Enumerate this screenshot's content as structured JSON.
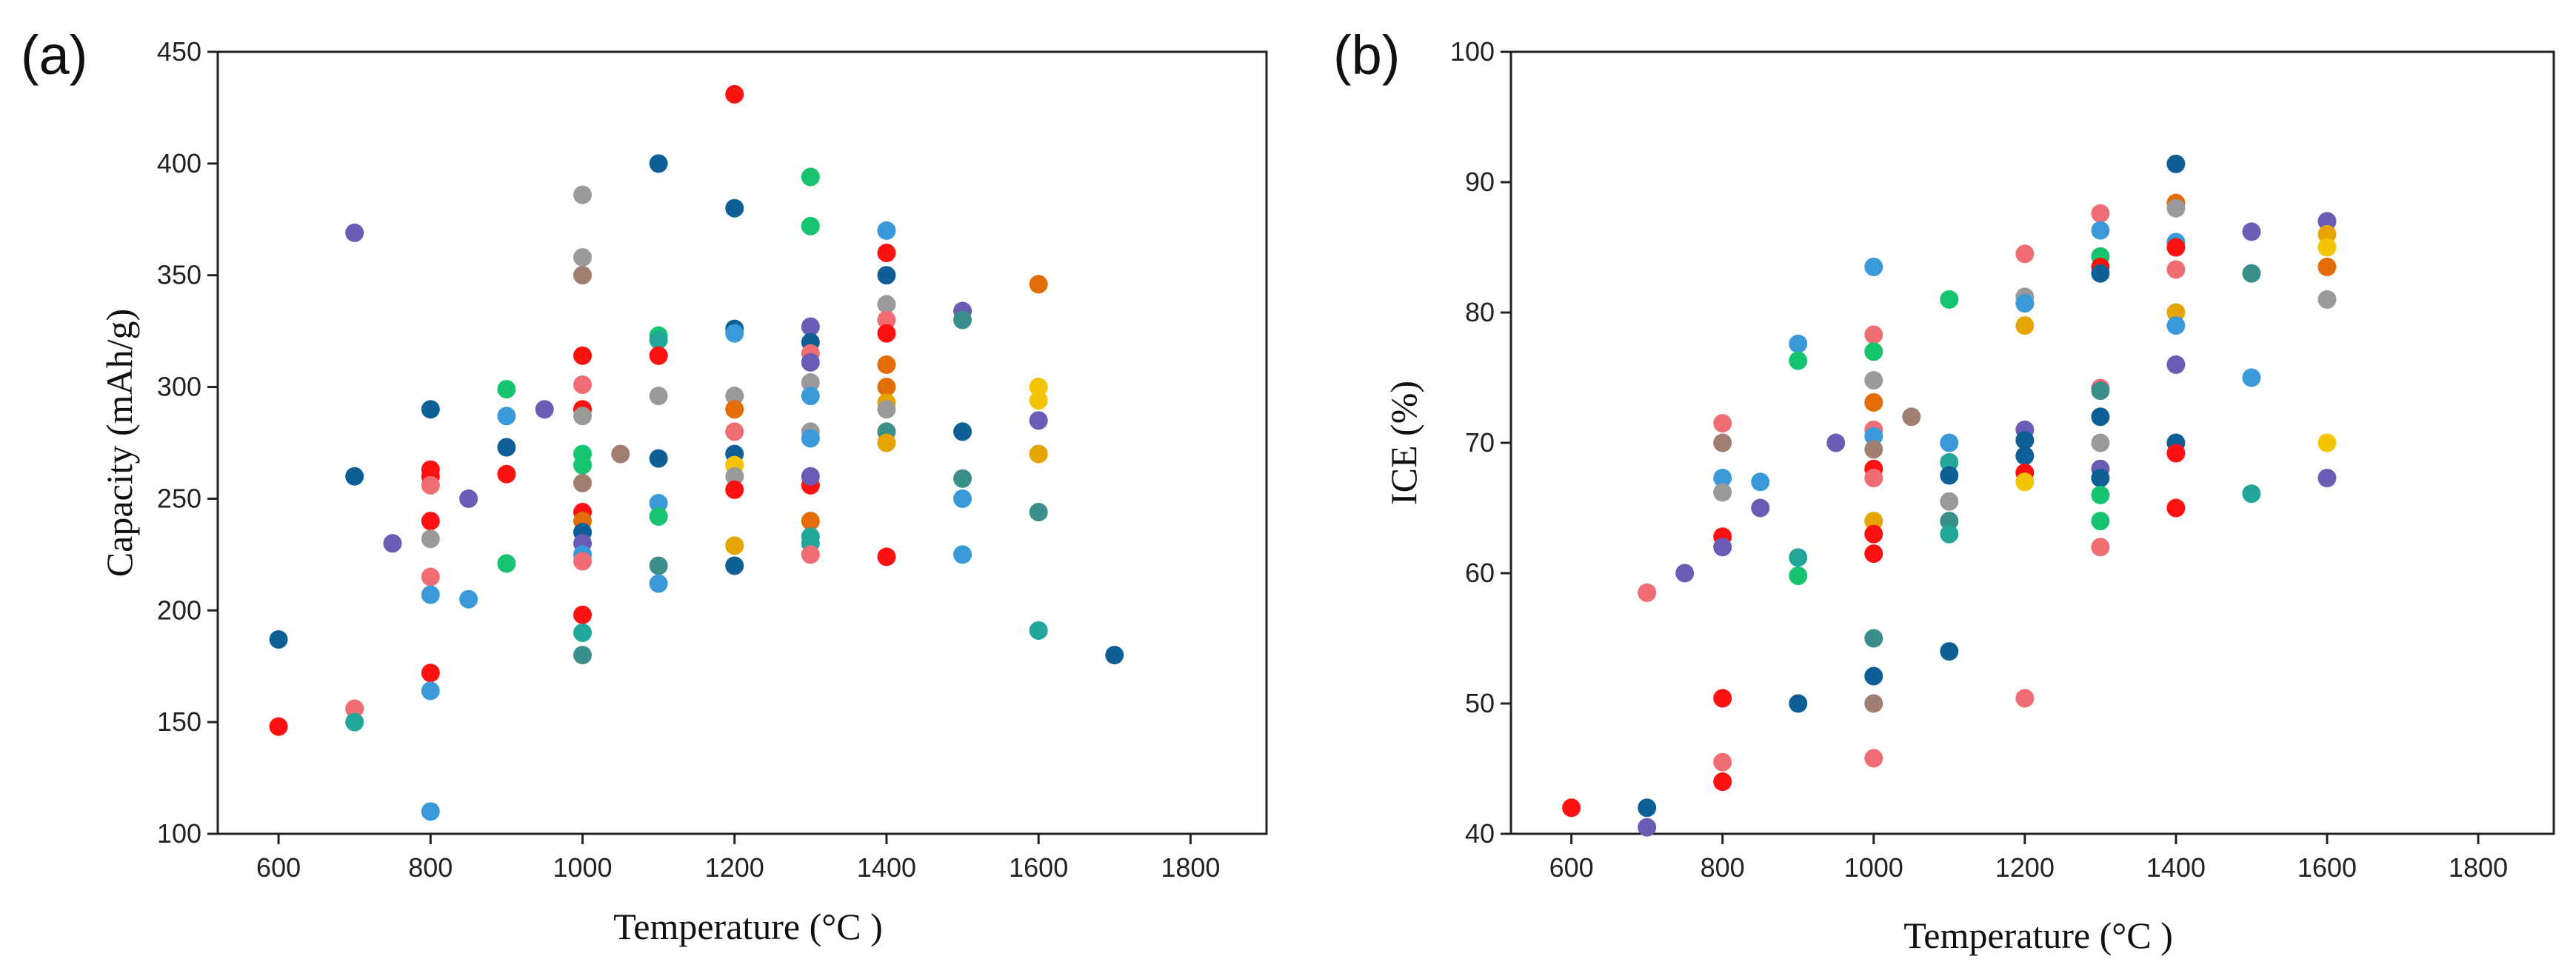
{
  "chart_data": [
    {
      "type": "scatter",
      "panel_label": "(a)",
      "title": "",
      "xlabel": "Temperature (°C )",
      "ylabel": "Capacity (mAh/g)",
      "xlim": [
        520,
        1900
      ],
      "ylim": [
        100,
        450
      ],
      "xticks": [
        600,
        800,
        1000,
        1200,
        1400,
        1600,
        1800
      ],
      "yticks": [
        100,
        150,
        200,
        250,
        300,
        350,
        400,
        450
      ],
      "grid": false,
      "legend": "none",
      "points": [
        [
          600,
          187,
          "#0e5f96"
        ],
        [
          600,
          148,
          "#ff1111"
        ],
        [
          700,
          369,
          "#6b5bb5"
        ],
        [
          700,
          260,
          "#0e5f96"
        ],
        [
          700,
          156,
          "#f06e73"
        ],
        [
          700,
          150,
          "#23a69a"
        ],
        [
          750,
          230,
          "#6b5bb5"
        ],
        [
          800,
          290,
          "#0e5f96"
        ],
        [
          800,
          263,
          "#ff1111"
        ],
        [
          800,
          260,
          "#ff1111"
        ],
        [
          800,
          256,
          "#f06e73"
        ],
        [
          800,
          240,
          "#ff1111"
        ],
        [
          800,
          232,
          "#9a9a9a"
        ],
        [
          800,
          215,
          "#f06e73"
        ],
        [
          800,
          207,
          "#3a9ad9"
        ],
        [
          800,
          172,
          "#ff1111"
        ],
        [
          800,
          164,
          "#3a9ad9"
        ],
        [
          800,
          110,
          "#3a9ad9"
        ],
        [
          850,
          250,
          "#6b5bb5"
        ],
        [
          850,
          205,
          "#3a9ad9"
        ],
        [
          900,
          299,
          "#16c36e"
        ],
        [
          900,
          287,
          "#3a9ad9"
        ],
        [
          900,
          273,
          "#0e5f96"
        ],
        [
          900,
          261,
          "#ff1111"
        ],
        [
          900,
          221,
          "#16c36e"
        ],
        [
          950,
          290,
          "#6b5bb5"
        ],
        [
          1000,
          386,
          "#9a9a9a"
        ],
        [
          1000,
          358,
          "#9a9a9a"
        ],
        [
          1000,
          350,
          "#a07f72"
        ],
        [
          1000,
          314,
          "#ff1111"
        ],
        [
          1000,
          301,
          "#f06e73"
        ],
        [
          1000,
          290,
          "#ff1111"
        ],
        [
          1000,
          287,
          "#9a9a9a"
        ],
        [
          1000,
          270,
          "#16c36e"
        ],
        [
          1000,
          265,
          "#16c36e"
        ],
        [
          1000,
          257,
          "#a07f72"
        ],
        [
          1000,
          244,
          "#ff1111"
        ],
        [
          1000,
          240,
          "#e26d07"
        ],
        [
          1000,
          235,
          "#0e5f96"
        ],
        [
          1000,
          230,
          "#6b5bb5"
        ],
        [
          1000,
          225,
          "#3a9ad9"
        ],
        [
          1000,
          222,
          "#f06e73"
        ],
        [
          1000,
          198,
          "#ff1111"
        ],
        [
          1000,
          190,
          "#23a69a"
        ],
        [
          1000,
          180,
          "#3a8f8a"
        ],
        [
          1050,
          270,
          "#a07f72"
        ],
        [
          1100,
          323,
          "#16c36e"
        ],
        [
          1100,
          321,
          "#23a69a"
        ],
        [
          1100,
          314,
          "#ff1111"
        ],
        [
          1100,
          296,
          "#9a9a9a"
        ],
        [
          1100,
          268,
          "#0e5f96"
        ],
        [
          1100,
          248,
          "#3a9ad9"
        ],
        [
          1100,
          242,
          "#16c36e"
        ],
        [
          1100,
          220,
          "#3a8f8a"
        ],
        [
          1100,
          212,
          "#3a9ad9"
        ],
        [
          1100,
          400,
          "#0e5f96"
        ],
        [
          1200,
          431,
          "#ff1111"
        ],
        [
          1200,
          380,
          "#0e5f96"
        ],
        [
          1200,
          326,
          "#0e5f96"
        ],
        [
          1200,
          324,
          "#3a9ad9"
        ],
        [
          1200,
          296,
          "#9a9a9a"
        ],
        [
          1200,
          290,
          "#e26d07"
        ],
        [
          1200,
          280,
          "#f06e73"
        ],
        [
          1200,
          270,
          "#0e5f96"
        ],
        [
          1200,
          265,
          "#f5c400"
        ],
        [
          1200,
          260,
          "#9a9a9a"
        ],
        [
          1200,
          254,
          "#ff1111"
        ],
        [
          1200,
          229,
          "#e5a400"
        ],
        [
          1200,
          220,
          "#0e5f96"
        ],
        [
          1300,
          394,
          "#16c36e"
        ],
        [
          1300,
          372,
          "#16c36e"
        ],
        [
          1300,
          327,
          "#6b5bb5"
        ],
        [
          1300,
          320,
          "#0e5f96"
        ],
        [
          1300,
          315,
          "#f06e73"
        ],
        [
          1300,
          311,
          "#6b5bb5"
        ],
        [
          1300,
          302,
          "#9a9a9a"
        ],
        [
          1300,
          296,
          "#3a9ad9"
        ],
        [
          1300,
          280,
          "#9a9a9a"
        ],
        [
          1300,
          277,
          "#3a9ad9"
        ],
        [
          1300,
          256,
          "#ff1111"
        ],
        [
          1300,
          260,
          "#6b5bb5"
        ],
        [
          1300,
          240,
          "#e26d07"
        ],
        [
          1300,
          233,
          "#23a69a"
        ],
        [
          1300,
          230,
          "#23a69a"
        ],
        [
          1300,
          225,
          "#f06e73"
        ],
        [
          1400,
          370,
          "#3a9ad9"
        ],
        [
          1400,
          360,
          "#ff1111"
        ],
        [
          1400,
          350,
          "#0e5f96"
        ],
        [
          1400,
          337,
          "#9a9a9a"
        ],
        [
          1400,
          330,
          "#f06e73"
        ],
        [
          1400,
          324,
          "#ff1111"
        ],
        [
          1400,
          310,
          "#e26d07"
        ],
        [
          1400,
          300,
          "#e26d07"
        ],
        [
          1400,
          293,
          "#e5a400"
        ],
        [
          1400,
          290,
          "#9a9a9a"
        ],
        [
          1400,
          280,
          "#3a8f8a"
        ],
        [
          1400,
          275,
          "#e5a400"
        ],
        [
          1400,
          224,
          "#ff1111"
        ],
        [
          1500,
          334,
          "#6b5bb5"
        ],
        [
          1500,
          330,
          "#3a8f8a"
        ],
        [
          1500,
          280,
          "#0e5f96"
        ],
        [
          1500,
          259,
          "#3a8f8a"
        ],
        [
          1500,
          250,
          "#3a9ad9"
        ],
        [
          1500,
          225,
          "#3a9ad9"
        ],
        [
          1600,
          346,
          "#e26d07"
        ],
        [
          1600,
          300,
          "#f5c400"
        ],
        [
          1600,
          294,
          "#f5c400"
        ],
        [
          1600,
          285,
          "#6b5bb5"
        ],
        [
          1600,
          270,
          "#e5a400"
        ],
        [
          1600,
          244,
          "#3a8f8a"
        ],
        [
          1600,
          191,
          "#23a69a"
        ],
        [
          1700,
          180,
          "#0e5f96"
        ]
      ]
    },
    {
      "type": "scatter",
      "panel_label": "(b)",
      "title": "",
      "xlabel": "Temperature (°C )",
      "ylabel": "ICE (%)",
      "xlim": [
        520,
        1900
      ],
      "ylim": [
        40,
        100
      ],
      "xticks": [
        600,
        800,
        1000,
        1200,
        1400,
        1600,
        1800
      ],
      "yticks": [
        40,
        50,
        60,
        70,
        80,
        90,
        100
      ],
      "grid": false,
      "legend": "none",
      "points": [
        [
          600,
          42,
          "#ff1111"
        ],
        [
          700,
          58.5,
          "#f06e73"
        ],
        [
          700,
          42,
          "#0e5f96"
        ],
        [
          700,
          40.5,
          "#6b5bb5"
        ],
        [
          750,
          60,
          "#6b5bb5"
        ],
        [
          800,
          71.5,
          "#f06e73"
        ],
        [
          800,
          70,
          "#a07f72"
        ],
        [
          800,
          67.3,
          "#3a9ad9"
        ],
        [
          800,
          66.2,
          "#9a9a9a"
        ],
        [
          800,
          62.8,
          "#ff1111"
        ],
        [
          800,
          62,
          "#6b5bb5"
        ],
        [
          800,
          50.4,
          "#ff1111"
        ],
        [
          800,
          45.5,
          "#f06e73"
        ],
        [
          800,
          44,
          "#ff1111"
        ],
        [
          850,
          67,
          "#3a9ad9"
        ],
        [
          850,
          65,
          "#6b5bb5"
        ],
        [
          900,
          77.6,
          "#3a9ad9"
        ],
        [
          900,
          76.3,
          "#16c36e"
        ],
        [
          900,
          61.2,
          "#23a69a"
        ],
        [
          900,
          59.8,
          "#16c36e"
        ],
        [
          900,
          50,
          "#0e5f96"
        ],
        [
          950,
          70,
          "#6b5bb5"
        ],
        [
          1000,
          83.5,
          "#3a9ad9"
        ],
        [
          1000,
          78.3,
          "#f06e73"
        ],
        [
          1000,
          77,
          "#16c36e"
        ],
        [
          1000,
          74.8,
          "#9a9a9a"
        ],
        [
          1000,
          73.1,
          "#e26d07"
        ],
        [
          1000,
          71,
          "#f06e73"
        ],
        [
          1000,
          70.5,
          "#3a9ad9"
        ],
        [
          1000,
          69.5,
          "#a07f72"
        ],
        [
          1000,
          68,
          "#ff1111"
        ],
        [
          1000,
          67.3,
          "#f06e73"
        ],
        [
          1000,
          64,
          "#e5a400"
        ],
        [
          1000,
          63,
          "#ff1111"
        ],
        [
          1000,
          61.5,
          "#ff1111"
        ],
        [
          1000,
          55,
          "#3a8f8a"
        ],
        [
          1000,
          52.1,
          "#0e5f96"
        ],
        [
          1000,
          50,
          "#a07f72"
        ],
        [
          1000,
          45.8,
          "#f06e73"
        ],
        [
          1050,
          72,
          "#a07f72"
        ],
        [
          1100,
          81,
          "#16c36e"
        ],
        [
          1100,
          70,
          "#3a9ad9"
        ],
        [
          1100,
          68.5,
          "#23a69a"
        ],
        [
          1100,
          67.5,
          "#0e5f96"
        ],
        [
          1100,
          65.5,
          "#9a9a9a"
        ],
        [
          1100,
          64,
          "#3a8f8a"
        ],
        [
          1100,
          63,
          "#23a69a"
        ],
        [
          1100,
          54,
          "#0e5f96"
        ],
        [
          1200,
          84.5,
          "#f06e73"
        ],
        [
          1200,
          81.2,
          "#9a9a9a"
        ],
        [
          1200,
          80.7,
          "#3a9ad9"
        ],
        [
          1200,
          79,
          "#e5a400"
        ],
        [
          1200,
          71,
          "#6b5bb5"
        ],
        [
          1200,
          70.2,
          "#0e5f96"
        ],
        [
          1200,
          69,
          "#0e5f96"
        ],
        [
          1200,
          67.7,
          "#ff1111"
        ],
        [
          1200,
          67,
          "#f5c400"
        ],
        [
          1200,
          50.4,
          "#f06e73"
        ],
        [
          1300,
          87.6,
          "#f06e73"
        ],
        [
          1300,
          86.3,
          "#3a9ad9"
        ],
        [
          1300,
          84.3,
          "#16c36e"
        ],
        [
          1300,
          83.5,
          "#ff1111"
        ],
        [
          1300,
          83,
          "#0e5f96"
        ],
        [
          1300,
          74.2,
          "#f06e73"
        ],
        [
          1300,
          74,
          "#3a8f8a"
        ],
        [
          1300,
          72,
          "#0e5f96"
        ],
        [
          1300,
          70,
          "#9a9a9a"
        ],
        [
          1300,
          68,
          "#6b5bb5"
        ],
        [
          1300,
          67.3,
          "#0e5f96"
        ],
        [
          1300,
          66,
          "#16c36e"
        ],
        [
          1300,
          64,
          "#16c36e"
        ],
        [
          1300,
          62,
          "#f06e73"
        ],
        [
          1400,
          91.4,
          "#0e5f96"
        ],
        [
          1400,
          88.4,
          "#e26d07"
        ],
        [
          1400,
          88,
          "#9a9a9a"
        ],
        [
          1400,
          85.4,
          "#3a9ad9"
        ],
        [
          1400,
          85,
          "#ff1111"
        ],
        [
          1400,
          83.3,
          "#f06e73"
        ],
        [
          1400,
          80,
          "#e5a400"
        ],
        [
          1400,
          79,
          "#3a9ad9"
        ],
        [
          1400,
          76,
          "#6b5bb5"
        ],
        [
          1400,
          70,
          "#0e5f96"
        ],
        [
          1400,
          69.2,
          "#ff1111"
        ],
        [
          1400,
          65,
          "#ff1111"
        ],
        [
          1500,
          86.2,
          "#6b5bb5"
        ],
        [
          1500,
          83,
          "#3a8f8a"
        ],
        [
          1500,
          75,
          "#3a9ad9"
        ],
        [
          1500,
          66.1,
          "#23a69a"
        ],
        [
          1600,
          87,
          "#6b5bb5"
        ],
        [
          1600,
          86,
          "#e5a400"
        ],
        [
          1600,
          85,
          "#f5c400"
        ],
        [
          1600,
          83.5,
          "#e26d07"
        ],
        [
          1600,
          81,
          "#9a9a9a"
        ],
        [
          1600,
          70,
          "#f5c400"
        ],
        [
          1600,
          67.3,
          "#6b5bb5"
        ]
      ]
    }
  ]
}
